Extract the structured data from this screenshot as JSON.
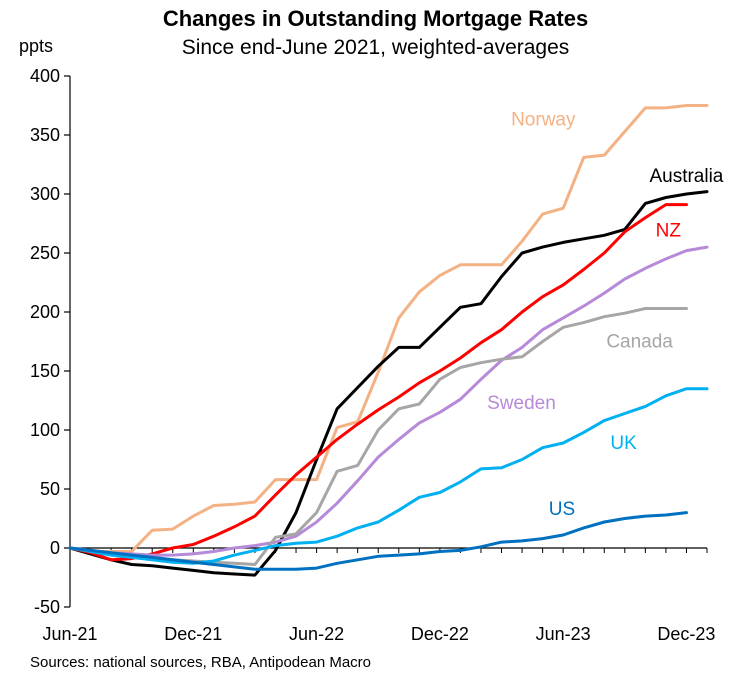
{
  "chart_data": {
    "type": "line",
    "title": "Changes in Outstanding Mortgage Rates",
    "subtitle": "Since end-June 2021, weighted-averages",
    "ylabel": "ppts",
    "xlabel": "",
    "ylim": [
      -50,
      400
    ],
    "yticks": [
      -50,
      0,
      50,
      100,
      150,
      200,
      250,
      300,
      350,
      400
    ],
    "xlim": [
      0,
      31
    ],
    "xticks": [
      {
        "x": 0,
        "label": "Jun-21"
      },
      {
        "x": 6,
        "label": "Dec-21"
      },
      {
        "x": 12,
        "label": "Jun-22"
      },
      {
        "x": 18,
        "label": "Dec-22"
      },
      {
        "x": 24,
        "label": "Jun-23"
      },
      {
        "x": 30,
        "label": "Dec-23"
      }
    ],
    "x_unit": "months since Jun-21",
    "series": [
      {
        "name": "Norway",
        "color": "#f4b183",
        "x": [
          0,
          1,
          2,
          3,
          4,
          5,
          6,
          7,
          8,
          9,
          10,
          11,
          12,
          13,
          14,
          15,
          16,
          17,
          18,
          19,
          20,
          21,
          22,
          23,
          24,
          25,
          26,
          27,
          28,
          29,
          30,
          31
        ],
        "values": [
          0,
          -3,
          -3,
          -3,
          15,
          16,
          27,
          36,
          37,
          39,
          58,
          58,
          58,
          102,
          107,
          149,
          195,
          217,
          231,
          240,
          240,
          240,
          260,
          283,
          288,
          331,
          333,
          353,
          373,
          373,
          375,
          375
        ]
      },
      {
        "name": "Australia",
        "color": "#000000",
        "x": [
          0,
          1,
          2,
          3,
          4,
          5,
          6,
          7,
          8,
          9,
          10,
          11,
          12,
          13,
          14,
          15,
          16,
          17,
          18,
          19,
          20,
          21,
          22,
          23,
          24,
          25,
          26,
          27,
          28,
          29,
          30,
          31
        ],
        "values": [
          0,
          -5,
          -10,
          -14,
          -15,
          -17,
          -19,
          -21,
          -22,
          -23,
          -2,
          30,
          75,
          118,
          136,
          154,
          170,
          170,
          187,
          204,
          207,
          230,
          250,
          255,
          259,
          262,
          265,
          270,
          292,
          297,
          300,
          302
        ]
      },
      {
        "name": "NZ",
        "color": "#ff0000",
        "x": [
          0,
          1,
          2,
          3,
          4,
          5,
          6,
          7,
          8,
          9,
          10,
          11,
          12,
          13,
          14,
          15,
          16,
          17,
          18,
          19,
          20,
          21,
          22,
          23,
          24,
          25,
          26,
          27,
          28,
          29,
          30
        ],
        "values": [
          0,
          -4,
          -10,
          -9,
          -5,
          0,
          3,
          10,
          18,
          27,
          45,
          62,
          77,
          92,
          105,
          117,
          128,
          140,
          150,
          161,
          174,
          185,
          200,
          213,
          223,
          236,
          250,
          268,
          280,
          291,
          291
        ]
      },
      {
        "name": "Sweden",
        "color": "#b689d9",
        "x": [
          0,
          1,
          2,
          3,
          4,
          5,
          6,
          7,
          8,
          9,
          10,
          11,
          12,
          13,
          14,
          15,
          16,
          17,
          18,
          19,
          20,
          21,
          22,
          23,
          24,
          25,
          26,
          27,
          28,
          29,
          30,
          31
        ],
        "values": [
          0,
          -2,
          -4,
          -5,
          -6,
          -6,
          -5,
          -3,
          0,
          2,
          5,
          10,
          22,
          38,
          57,
          77,
          92,
          106,
          115,
          126,
          143,
          159,
          170,
          185,
          195,
          205,
          216,
          228,
          237,
          245,
          252,
          255
        ]
      },
      {
        "name": "Canada",
        "color": "#a6a6a6",
        "x": [
          0,
          1,
          2,
          3,
          4,
          5,
          6,
          7,
          8,
          9,
          10,
          11,
          12,
          13,
          14,
          15,
          16,
          17,
          18,
          19,
          20,
          21,
          22,
          23,
          24,
          25,
          26,
          27,
          28,
          29,
          30
        ],
        "values": [
          0,
          -2,
          -4,
          -6,
          -8,
          -10,
          -11,
          -12,
          -13,
          -14,
          9,
          12,
          30,
          65,
          70,
          100,
          118,
          122,
          143,
          153,
          157,
          160,
          162,
          175,
          187,
          191,
          196,
          199,
          203,
          203,
          203
        ]
      },
      {
        "name": "UK",
        "color": "#00b0f0",
        "x": [
          0,
          1,
          2,
          3,
          4,
          5,
          6,
          7,
          8,
          9,
          10,
          11,
          12,
          13,
          14,
          15,
          16,
          17,
          18,
          19,
          20,
          21,
          22,
          23,
          24,
          25,
          26,
          27,
          28,
          29,
          30,
          31
        ],
        "values": [
          0,
          -3,
          -6,
          -8,
          -10,
          -12,
          -13,
          -11,
          -6,
          -2,
          2,
          4,
          5,
          10,
          17,
          22,
          32,
          43,
          47,
          56,
          67,
          68,
          75,
          85,
          89,
          98,
          108,
          114,
          120,
          129,
          135,
          135
        ]
      },
      {
        "name": "US",
        "color": "#0070c0",
        "x": [
          0,
          1,
          2,
          3,
          4,
          5,
          6,
          7,
          8,
          9,
          10,
          11,
          12,
          13,
          14,
          15,
          16,
          17,
          18,
          19,
          20,
          21,
          22,
          23,
          24,
          25,
          26,
          27,
          28,
          29,
          30
        ],
        "values": [
          0,
          -2,
          -4,
          -6,
          -8,
          -10,
          -12,
          -14,
          -16,
          -18,
          -18,
          -18,
          -17,
          -13,
          -10,
          -7,
          -6,
          -5,
          -3,
          -2,
          1,
          5,
          6,
          8,
          11,
          17,
          22,
          25,
          27,
          28,
          30
        ]
      }
    ],
    "annotations": [
      {
        "text": "Norway",
        "series": "Norway"
      },
      {
        "text": "Australia",
        "series": "Australia"
      },
      {
        "text": "NZ",
        "series": "NZ"
      },
      {
        "text": "Canada",
        "series": "Canada"
      },
      {
        "text": "Sweden",
        "series": "Sweden"
      },
      {
        "text": "UK",
        "series": "UK"
      },
      {
        "text": "US",
        "series": "US"
      }
    ],
    "source": "Sources: national sources, RBA, Antipodean Macro"
  }
}
